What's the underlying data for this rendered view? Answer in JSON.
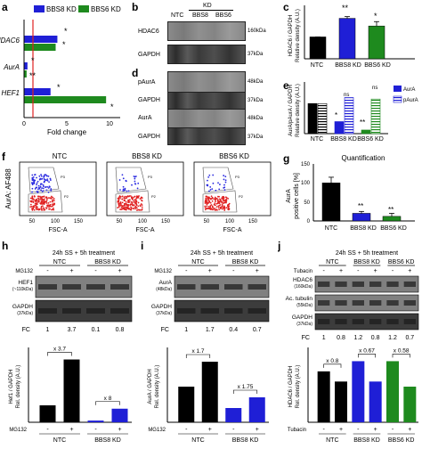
{
  "panels": {
    "a": {
      "letter": "a",
      "legend": [
        "BBS8 KD",
        "BBS6 KD"
      ],
      "genes": [
        "HDAC6",
        "AurA",
        "HEF1"
      ],
      "xlabel": "Fold change",
      "ticks": [
        "0",
        "5",
        "10"
      ],
      "stars": [
        "*",
        "*",
        "*",
        "**",
        "*",
        "*"
      ]
    },
    "b": {
      "letter": "b",
      "kd": "KD",
      "lanes": [
        "NTC",
        "BBS8",
        "BBS6"
      ],
      "bands": [
        "HDAC6",
        "GAPDH"
      ],
      "sizes": [
        "160kDa",
        "37kDa"
      ]
    },
    "c": {
      "letter": "c",
      "ylabel1": "HDAC6 / GAPDH",
      "ylabel2": "Relative density (A.U.)",
      "cats": [
        "NTC",
        "BBS8\nKD",
        "BBS6\nKD"
      ],
      "stars": [
        "**",
        "*"
      ]
    },
    "d": {
      "letter": "d",
      "bands": [
        "pAurA",
        "GAPDH",
        "AurA",
        "GAPDH"
      ],
      "sizes": [
        "48kDa",
        "37kDa",
        "48kDa",
        "37kDa"
      ]
    },
    "e": {
      "letter": "e",
      "ylabel1": "AurA/pAurA / GAPDH",
      "ylabel2": "Relative density (A.U.)",
      "cats": [
        "NTC",
        "BBS8\nKD",
        "BBS6\nKD"
      ],
      "legend": [
        "AurA",
        "pAurA"
      ],
      "stars": [
        "*",
        "ns",
        "**",
        "ns"
      ]
    },
    "f": {
      "letter": "f",
      "ylabel": "AurA: AF488",
      "xlabel": "FSC-A",
      "titles": [
        "NTC",
        "BBS8 KD",
        "BBS6 KD"
      ],
      "ticks": [
        "50",
        "100",
        "150"
      ],
      "gates": [
        "P3",
        "P2"
      ]
    },
    "g": {
      "letter": "g",
      "title": "Quantification",
      "ylabel1": "AurA",
      "ylabel2": "positive cells [%]",
      "yticks": [
        "0",
        "50",
        "100",
        "150"
      ],
      "cats": [
        "NTC",
        "BBS8\nKD",
        "BBS6\nKD"
      ],
      "stars": [
        "**",
        "**"
      ]
    },
    "h": {
      "letter": "h",
      "header": "24h SS + 5h treatment",
      "groups": [
        "NTC",
        "BBS8 KD"
      ],
      "treat": "MG132",
      "pm": [
        "-",
        "+",
        "-",
        "+"
      ],
      "bands": [
        "HEF1\n(~110kDa)",
        "GAPDH\n(37kDa)"
      ],
      "fc_label": "FC",
      "fc": [
        "1",
        "3.7",
        "0.1",
        "0.8"
      ],
      "ylabel1": "Hef1 / GAPDH",
      "ylabel2": "Rel. density (A.U.)",
      "ann": [
        "x 3.7",
        "x 8"
      ],
      "xgroups": [
        "NTC",
        "BBS8 KD"
      ]
    },
    "i": {
      "letter": "i",
      "header": "24h SS + 5h treatment",
      "groups": [
        "NTC",
        "BBS8 KD"
      ],
      "treat": "MG132",
      "pm": [
        "-",
        "+",
        "-",
        "+"
      ],
      "bands": [
        "AurA\n(48kDa)",
        "GAPDH\n(37kDa)"
      ],
      "fc_label": "FC",
      "fc": [
        "1",
        "1.7",
        "0.4",
        "0.7"
      ],
      "ylabel1": "AurA / GAPDH",
      "ylabel2": "Rel. density (A.U.)",
      "ann": [
        "x 1.7",
        "x 1.75"
      ],
      "xgroups": [
        "NTC",
        "BBS8 KD"
      ]
    },
    "j": {
      "letter": "j",
      "header": "24h SS + 5h treatment",
      "groups": [
        "NTC",
        "BBS8 KD",
        "BBS6 KD"
      ],
      "treat": "Tubacin",
      "pm": [
        "-",
        "+",
        "-",
        "+",
        "-",
        "+"
      ],
      "bands": [
        "HDAC6\n(160kDa)",
        "Ac. tubulin\n(55kDa)",
        "GAPDH\n(37kDa)"
      ],
      "fc_label": "FC",
      "fc": [
        "1",
        "0.8",
        "1.2",
        "0.8",
        "1.2",
        "0.7"
      ],
      "ylabel1": "HDAC6 / GAPDH",
      "ylabel2": "Rel. density (A.U.)",
      "ann": [
        "x 0.8",
        "x 0.67",
        "x 0.58"
      ],
      "xgroups": [
        "NTC",
        "BBS8 KD",
        "BBS6 KD"
      ]
    }
  },
  "colors": {
    "blue": "#1f1fd6",
    "green": "#1e8a1e",
    "red": "#e02020",
    "black": "#000000",
    "white": "#ffffff"
  },
  "chart_data": [
    {
      "type": "bar",
      "panel": "a",
      "categories": [
        "HDAC6",
        "AurA",
        "HEF1"
      ],
      "series": [
        {
          "name": "BBS8 KD",
          "values": [
            3.9,
            0.4,
            3.1
          ]
        },
        {
          "name": "BBS6 KD",
          "values": [
            3.7,
            0.3,
            9.6
          ]
        }
      ],
      "xlabel": "Fold change",
      "xlim": [
        0,
        11
      ],
      "reference": 1
    },
    {
      "type": "bar",
      "panel": "c",
      "categories": [
        "NTC",
        "BBS8 KD",
        "BBS6 KD"
      ],
      "values": [
        1.0,
        1.85,
        1.5
      ],
      "ylim": [
        0,
        2.2
      ]
    },
    {
      "type": "bar",
      "panel": "e",
      "categories": [
        "NTC",
        "BBS8 KD",
        "BBS6 KD"
      ],
      "series": [
        {
          "name": "AurA",
          "values": [
            1.0,
            0.4,
            0.12
          ]
        },
        {
          "name": "pAurA",
          "values": [
            1.0,
            1.2,
            1.15
          ]
        }
      ],
      "ylim": [
        0,
        1.6
      ]
    },
    {
      "type": "bar",
      "panel": "g",
      "categories": [
        "NTC",
        "BBS8 KD",
        "BBS6 KD"
      ],
      "values": [
        100,
        20,
        12
      ],
      "ylim": [
        0,
        150
      ]
    },
    {
      "type": "bar",
      "panel": "h",
      "categories": [
        "NTC -",
        "NTC +",
        "BBS8 KD -",
        "BBS8 KD +"
      ],
      "values": [
        1.0,
        3.7,
        0.1,
        0.8
      ],
      "ylim": [
        0,
        4.2
      ]
    },
    {
      "type": "bar",
      "panel": "i",
      "categories": [
        "NTC -",
        "NTC +",
        "BBS8 KD -",
        "BBS8 KD +"
      ],
      "values": [
        1.0,
        1.7,
        0.4,
        0.7
      ],
      "ylim": [
        0,
        2.0
      ]
    },
    {
      "type": "bar",
      "panel": "j",
      "categories": [
        "NTC -",
        "NTC +",
        "BBS8 KD -",
        "BBS8 KD +",
        "BBS6 KD -",
        "BBS6 KD +"
      ],
      "values": [
        1.0,
        0.8,
        1.2,
        0.8,
        1.2,
        0.7
      ],
      "ylim": [
        0,
        1.4
      ]
    }
  ]
}
